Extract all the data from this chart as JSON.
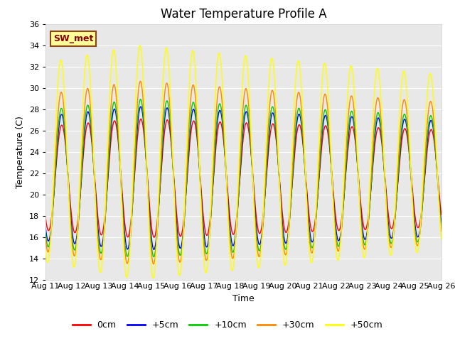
{
  "title": "Water Temperature Profile A",
  "xlabel": "Time",
  "ylabel": "Temperature (C)",
  "ylim": [
    12,
    36
  ],
  "yticks": [
    12,
    14,
    16,
    18,
    20,
    22,
    24,
    26,
    28,
    30,
    32,
    34,
    36
  ],
  "bg_color": "#e8e8e8",
  "fig_bg": "#ffffff",
  "grid_color": "#ffffff",
  "legend_labels": [
    "0cm",
    "+5cm",
    "+10cm",
    "+30cm",
    "+50cm"
  ],
  "legend_colors": [
    "#ff0000",
    "#0000ff",
    "#00cc00",
    "#ff8800",
    "#ffff00"
  ],
  "annotation_text": "SW_met",
  "annotation_bg": "#ffff99",
  "annotation_border": "#8b4513",
  "annotation_text_color": "#8b0000",
  "title_fontsize": 12,
  "axis_fontsize": 9,
  "tick_fontsize": 8,
  "legend_fontsize": 9
}
